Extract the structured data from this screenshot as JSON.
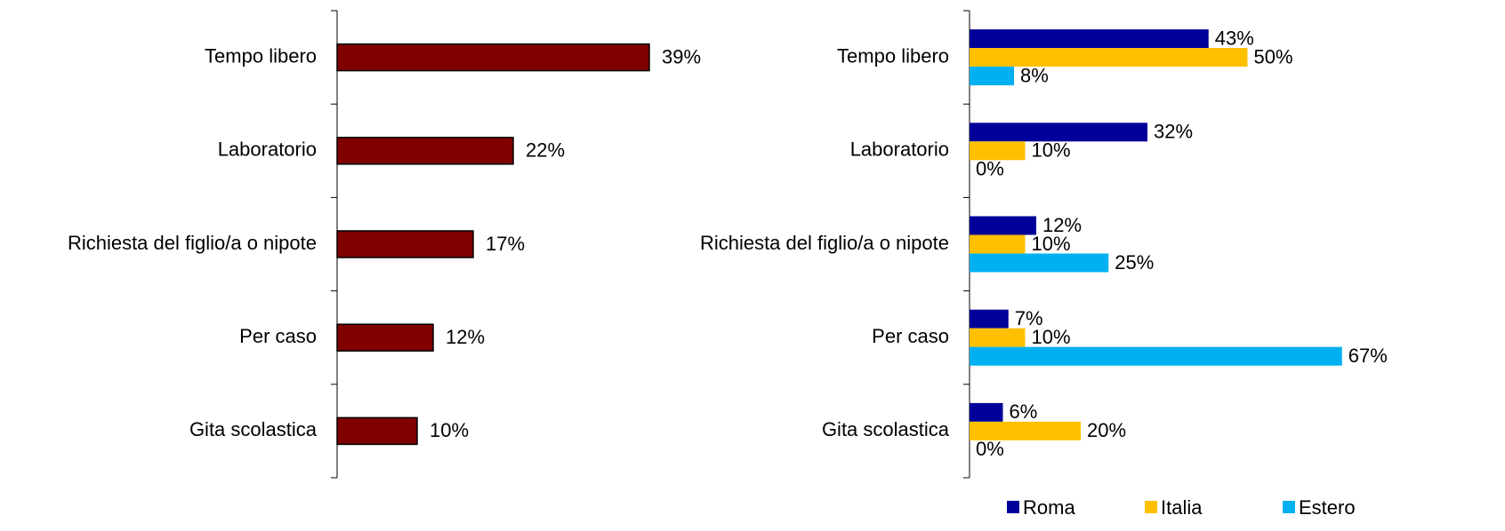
{
  "chart_data": [
    {
      "type": "bar",
      "categories": [
        "Tempo libero",
        "Laboratorio",
        "Richiesta del figlio/a o nipote",
        "Per caso",
        "Gita scolastica"
      ],
      "values": [
        39,
        22,
        17,
        12,
        10
      ],
      "value_labels": [
        "39%",
        "22%",
        "17%",
        "12%",
        "10%"
      ],
      "color": "#800000"
    },
    {
      "type": "grouped_bar",
      "categories": [
        "Tempo libero",
        "Laboratorio",
        "Richiesta del figlio/a o nipote",
        "Per caso",
        "Gita scolastica"
      ],
      "series": [
        {
          "name": "Roma",
          "color": "#000099",
          "values": [
            43,
            32,
            12,
            7,
            6
          ],
          "value_labels": [
            "43%",
            "32%",
            "12%",
            "7%",
            "6%"
          ]
        },
        {
          "name": "Italia",
          "color": "#FFC000",
          "values": [
            50,
            10,
            10,
            10,
            20
          ],
          "value_labels": [
            "50%",
            "10%",
            "10%",
            "10%",
            "20%"
          ]
        },
        {
          "name": "Estero",
          "color": "#00B0F0",
          "values": [
            8,
            0,
            25,
            67,
            0
          ],
          "value_labels": [
            "8%",
            "0%",
            "25%",
            "67%",
            "0%"
          ]
        }
      ],
      "legend": "bottom"
    }
  ]
}
